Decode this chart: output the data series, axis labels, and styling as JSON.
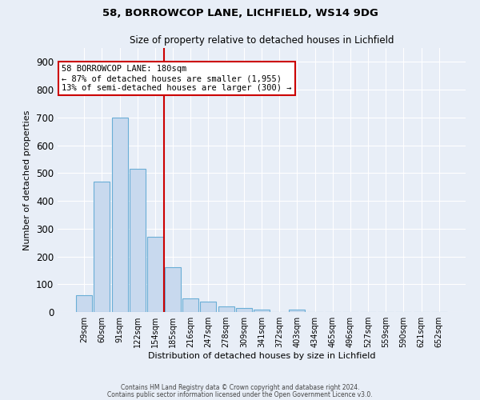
{
  "title1": "58, BORROWCOP LANE, LICHFIELD, WS14 9DG",
  "title2": "Size of property relative to detached houses in Lichfield",
  "xlabel": "Distribution of detached houses by size in Lichfield",
  "ylabel": "Number of detached properties",
  "categories": [
    "29sqm",
    "60sqm",
    "91sqm",
    "122sqm",
    "154sqm",
    "185sqm",
    "216sqm",
    "247sqm",
    "278sqm",
    "309sqm",
    "341sqm",
    "372sqm",
    "403sqm",
    "434sqm",
    "465sqm",
    "496sqm",
    "527sqm",
    "559sqm",
    "590sqm",
    "621sqm",
    "652sqm"
  ],
  "values": [
    60,
    470,
    700,
    515,
    270,
    160,
    50,
    37,
    20,
    13,
    10,
    0,
    8,
    0,
    0,
    0,
    0,
    0,
    0,
    0,
    0
  ],
  "bar_color": "#c8d9ee",
  "bar_edge_color": "#6aaed6",
  "vline_color": "#cc0000",
  "ylim": [
    0,
    950
  ],
  "yticks": [
    0,
    100,
    200,
    300,
    400,
    500,
    600,
    700,
    800,
    900
  ],
  "annotation_title": "58 BORROWCOP LANE: 180sqm",
  "annotation_line1": "← 87% of detached houses are smaller (1,955)",
  "annotation_line2": "13% of semi-detached houses are larger (300) →",
  "annotation_box_color": "#ffffff",
  "annotation_box_edge": "#cc0000",
  "footer1": "Contains HM Land Registry data © Crown copyright and database right 2024.",
  "footer2": "Contains public sector information licensed under the Open Government Licence v3.0.",
  "background_color": "#e8eef7",
  "grid_color": "#ffffff"
}
